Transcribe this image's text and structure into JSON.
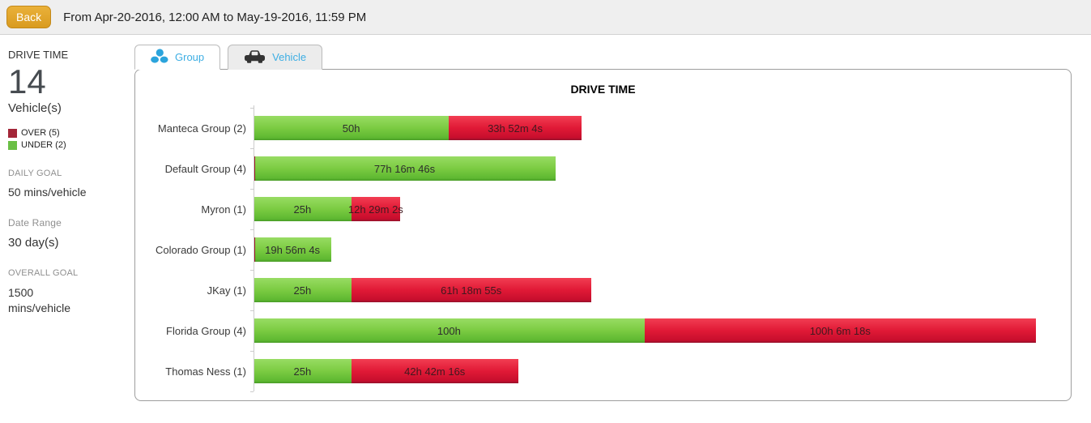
{
  "top_bar": {
    "back_label": "Back",
    "date_range_text": "From Apr-20-2016, 12:00 AM to May-19-2016, 11:59 PM"
  },
  "sidebar": {
    "title": "DRIVE TIME",
    "vehicle_count": "14",
    "vehicle_count_label": "Vehicle(s)",
    "legend": [
      {
        "label": "OVER (5)",
        "color": "#a32638"
      },
      {
        "label": "UNDER (2)",
        "color": "#6abf45"
      }
    ],
    "stats": [
      {
        "heading": "DAILY GOAL",
        "value": "50 mins/vehicle"
      },
      {
        "heading": "Date Range",
        "value": "30 day(s)"
      },
      {
        "heading": "OVERALL GOAL",
        "value": "1500 mins/vehicle"
      }
    ]
  },
  "tabs": [
    {
      "label": "Group",
      "icon": "group-icon",
      "active": true
    },
    {
      "label": "Vehicle",
      "icon": "vehicle-icon",
      "active": false
    }
  ],
  "chart_data": {
    "type": "bar",
    "orientation": "horizontal",
    "stacked": true,
    "title": "DRIVE TIME",
    "xlabel": "",
    "ylabel": "",
    "axis_max_hours": 202,
    "grid": false,
    "legend_position": "left-sidebar",
    "series_colors": {
      "under_green": "#7ccc43",
      "over_red": "#dc1733"
    },
    "categories": [
      "Manteca Group (2)",
      "Default Group (4)",
      "Myron (1)",
      "Colorado Group (1)",
      "JKay (1)",
      "Florida Group (4)",
      "Thomas Ness (1)"
    ],
    "rows": [
      {
        "category": "Manteca Group (2)",
        "under": {
          "hours": 50,
          "label": "50h"
        },
        "over": {
          "hours": 33.8678,
          "label": "33h 52m 4s"
        }
      },
      {
        "category": "Default Group (4)",
        "under": {
          "hours": 77.2794,
          "label": "77h 16m 46s"
        },
        "over": {
          "hours": 0,
          "label": ""
        }
      },
      {
        "category": "Myron (1)",
        "under": {
          "hours": 25,
          "label": "25h"
        },
        "over": {
          "hours": 12.4839,
          "label": "12h 29m 2s"
        }
      },
      {
        "category": "Colorado Group (1)",
        "under": {
          "hours": 19.9344,
          "label": "19h 56m 4s"
        },
        "over": {
          "hours": 0,
          "label": ""
        }
      },
      {
        "category": "JKay (1)",
        "under": {
          "hours": 25,
          "label": "25h"
        },
        "over": {
          "hours": 61.3153,
          "label": "61h 18m 55s"
        }
      },
      {
        "category": "Florida Group (4)",
        "under": {
          "hours": 100,
          "label": "100h"
        },
        "over": {
          "hours": 100.105,
          "label": "100h 6m 18s"
        }
      },
      {
        "category": "Thomas Ness (1)",
        "under": {
          "hours": 25,
          "label": "25h"
        },
        "over": {
          "hours": 42.7044,
          "label": "42h 42m 16s"
        }
      }
    ]
  }
}
